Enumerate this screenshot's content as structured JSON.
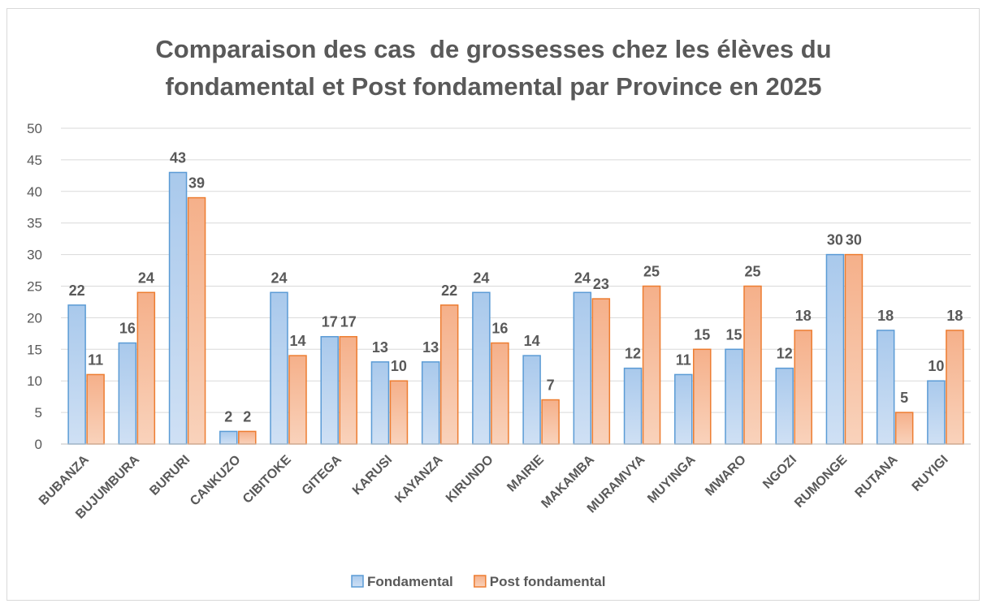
{
  "chart_data": {
    "type": "bar",
    "title": "Comparaison des cas  de grossesses chez les élèves du fondamental et Post fondamental par Province en 2025",
    "categories": [
      "BUBANZA",
      "BUJUMBURA",
      "BURURI",
      "CANKUZO",
      "CIBITOKE",
      "GITEGA",
      "KARUSI",
      "KAYANZA",
      "KIRUNDO",
      "MAIRIE",
      "MAKAMBA",
      "MURAMVYA",
      "MUYINGA",
      "MWARO",
      "NGOZI",
      "RUMONGE",
      "RUTANA",
      "RUYIGI"
    ],
    "series": [
      {
        "name": "Fondamental",
        "color": "#5b9bd5",
        "values": [
          22,
          16,
          43,
          2,
          24,
          17,
          13,
          13,
          24,
          14,
          24,
          12,
          11,
          15,
          12,
          30,
          18,
          10
        ]
      },
      {
        "name": "Post fondamental",
        "color": "#ed7d31",
        "values": [
          11,
          24,
          39,
          2,
          14,
          17,
          10,
          22,
          16,
          7,
          23,
          25,
          15,
          25,
          18,
          30,
          5,
          18
        ]
      }
    ],
    "ylim": [
      0,
      50
    ],
    "yticks": [
      0,
      5,
      10,
      15,
      20,
      25,
      30,
      35,
      40,
      45,
      50
    ],
    "grid": true,
    "legend": "bottom"
  }
}
